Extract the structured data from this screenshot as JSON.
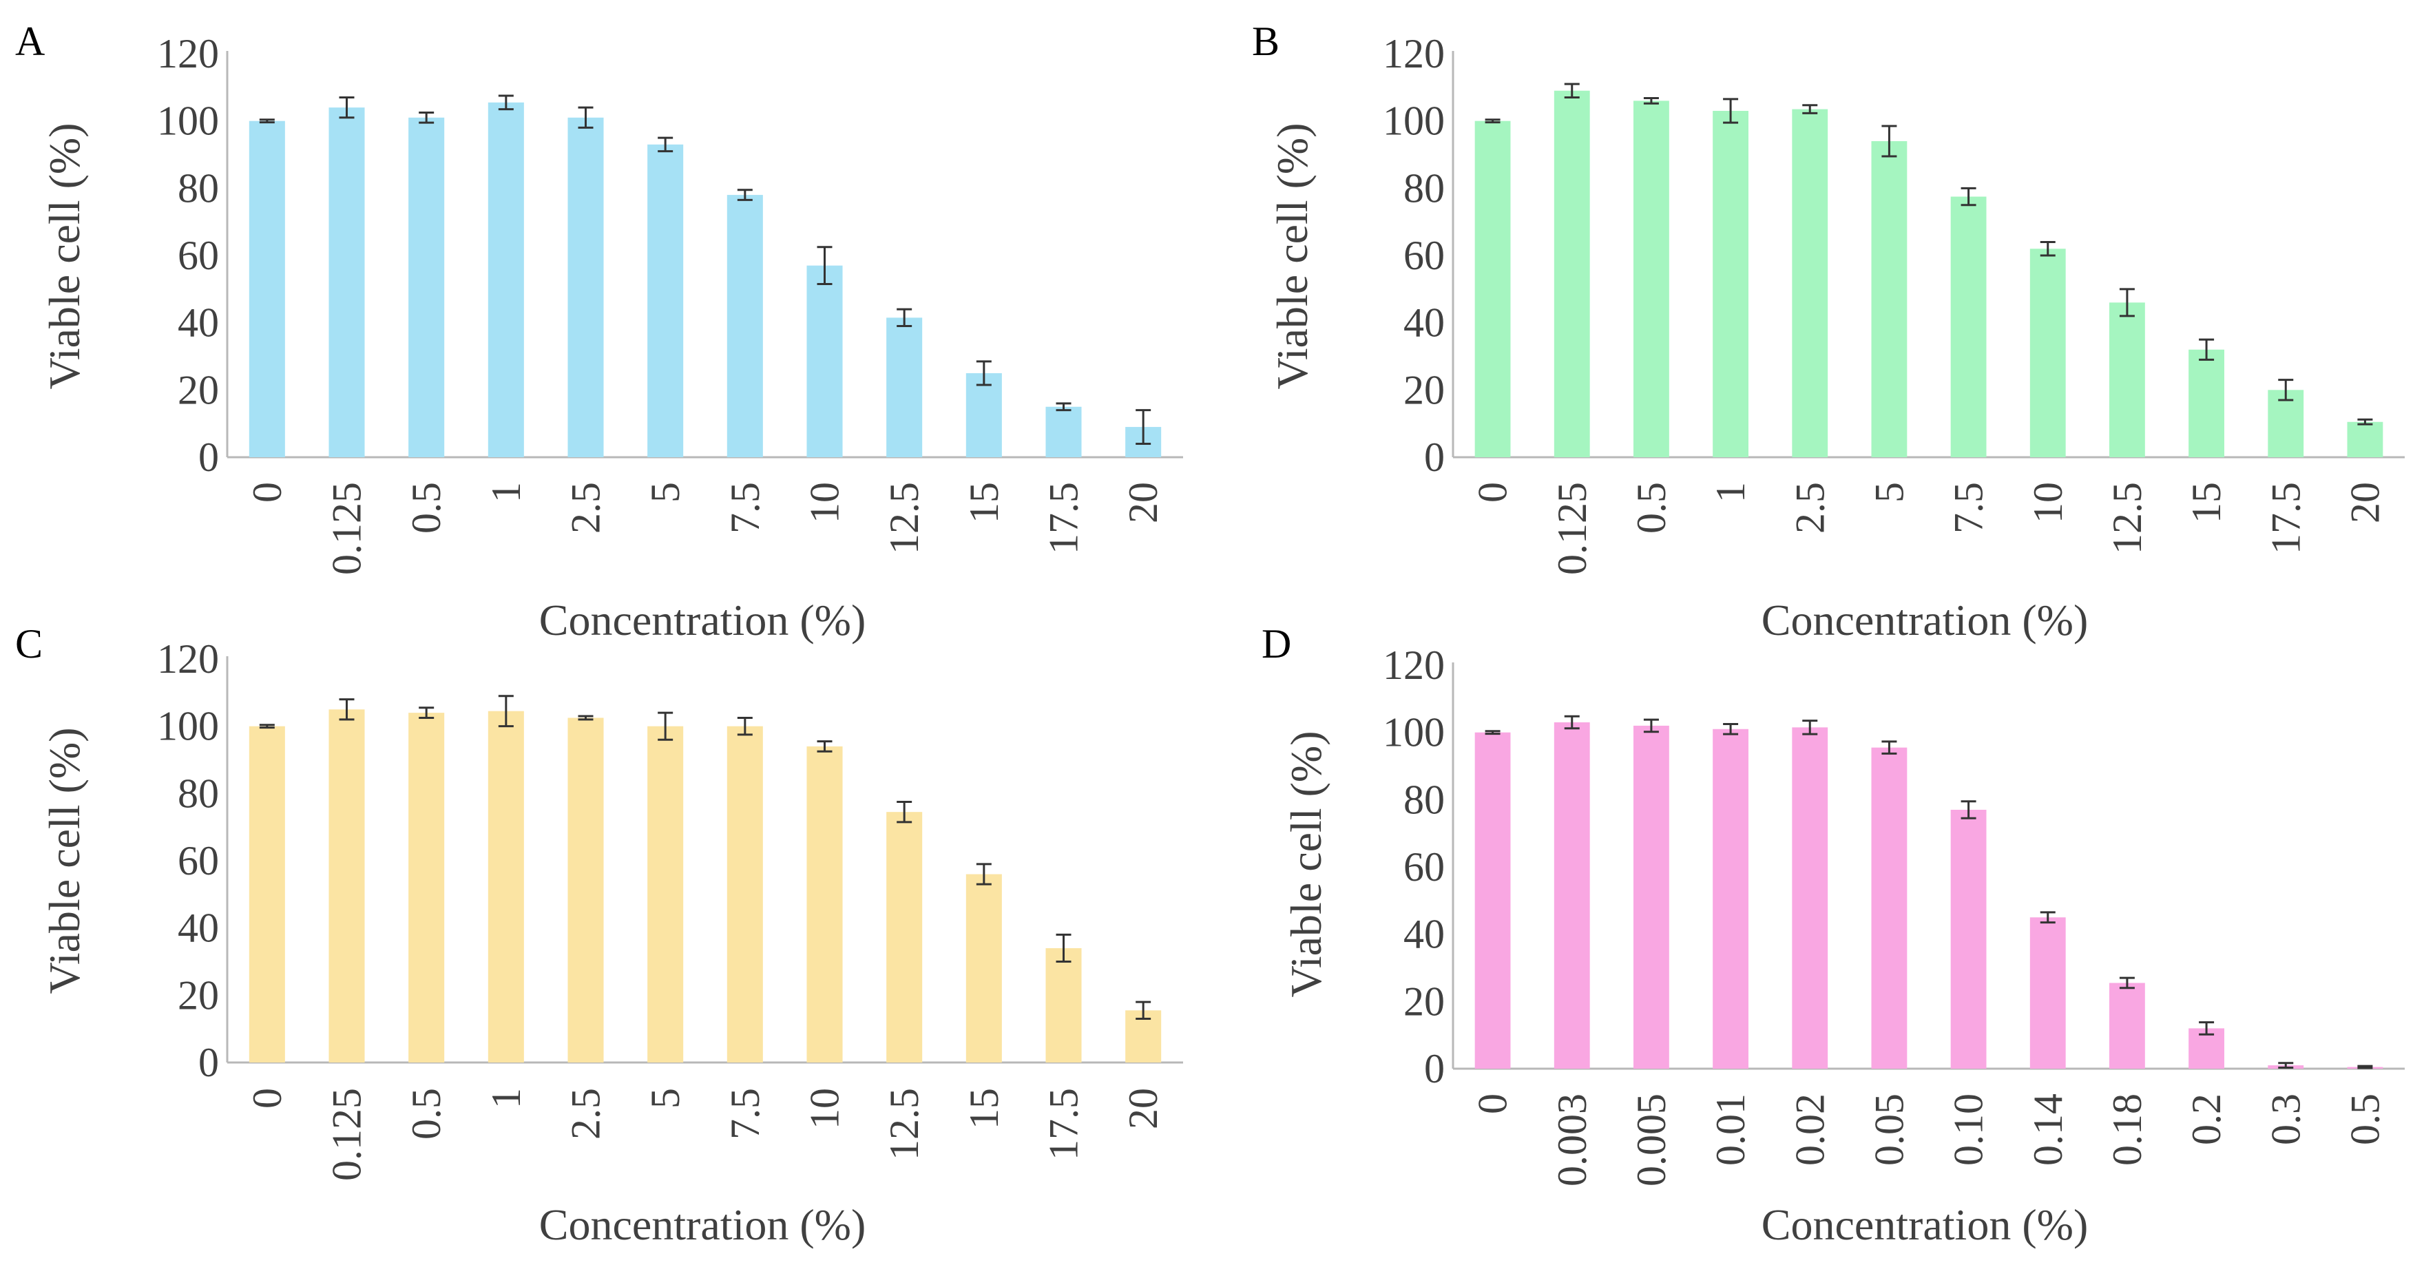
{
  "chart_data": [
    {
      "type": "bar",
      "panel": "A",
      "color": "#a6e1f5",
      "categories": [
        "0",
        "0.125",
        "0.5",
        "1",
        "2.5",
        "5",
        "7.5",
        "10",
        "12.5",
        "15",
        "17.5",
        "20"
      ],
      "values": [
        100,
        104,
        101,
        105.5,
        101,
        93,
        78,
        57,
        41.5,
        25,
        15,
        9
      ],
      "errors": [
        0.4,
        3,
        1.5,
        2,
        3,
        2,
        1.5,
        5.5,
        2.5,
        3.5,
        1,
        5
      ],
      "yticks": [
        "0",
        "20",
        "40",
        "60",
        "80",
        "100",
        "120"
      ],
      "ylim": [
        0,
        120
      ],
      "xlabel": "Concentration (%)",
      "ylabel": "Viable cell (%)"
    },
    {
      "type": "bar",
      "panel": "B",
      "color": "#a5f5c0",
      "categories": [
        "0",
        "0.125",
        "0.5",
        "1",
        "2.5",
        "5",
        "7.5",
        "10",
        "12.5",
        "15",
        "17.5",
        "20"
      ],
      "values": [
        100,
        109,
        106,
        103,
        103.5,
        94,
        77.5,
        62,
        46,
        32,
        20,
        10.5
      ],
      "errors": [
        0.4,
        2,
        0.8,
        3.5,
        1.2,
        4.5,
        2.5,
        2,
        4,
        3,
        3,
        0.7
      ],
      "yticks": [
        "0",
        "20",
        "40",
        "60",
        "80",
        "100",
        "120"
      ],
      "ylim": [
        0,
        120
      ],
      "xlabel": "Concentration (%)",
      "ylabel": "Viable cell (%)"
    },
    {
      "type": "bar",
      "panel": "C",
      "color": "#fbe4a3",
      "categories": [
        "0",
        "0.125",
        "0.5",
        "1",
        "2.5",
        "5",
        "7.5",
        "10",
        "12.5",
        "15",
        "17.5",
        "20"
      ],
      "values": [
        100,
        105,
        104,
        104.5,
        102.5,
        100,
        100,
        94,
        74.5,
        56,
        34,
        15.5
      ],
      "errors": [
        0.4,
        3,
        1.5,
        4.5,
        0.5,
        4,
        2.5,
        1.5,
        3,
        3,
        4,
        2.5
      ],
      "yticks": [
        "0",
        "20",
        "40",
        "60",
        "80",
        "100",
        "120"
      ],
      "ylim": [
        0,
        120
      ],
      "xlabel": "Concentration (%)",
      "ylabel": "Viable cell (%)"
    },
    {
      "type": "bar",
      "panel": "D",
      "color": "#f9a7e2",
      "categories": [
        "0",
        "0.003",
        "0.005",
        "0.01",
        "0.02",
        "0.05",
        "0.10",
        "0.14",
        "0.18",
        "0.2",
        "0.3",
        "0.5"
      ],
      "values": [
        100,
        103,
        102,
        101,
        101.5,
        95.5,
        77,
        45,
        25.5,
        12,
        1,
        0.5
      ],
      "errors": [
        0.4,
        1.8,
        1.8,
        1.5,
        2,
        1.8,
        2.5,
        1.5,
        1.5,
        1.8,
        0.7,
        0.3
      ],
      "yticks": [
        "0",
        "20",
        "40",
        "60",
        "80",
        "100",
        "120"
      ],
      "ylim": [
        0,
        120
      ],
      "xlabel": "Concentration (%)",
      "ylabel": "Viable cell (%)"
    }
  ]
}
